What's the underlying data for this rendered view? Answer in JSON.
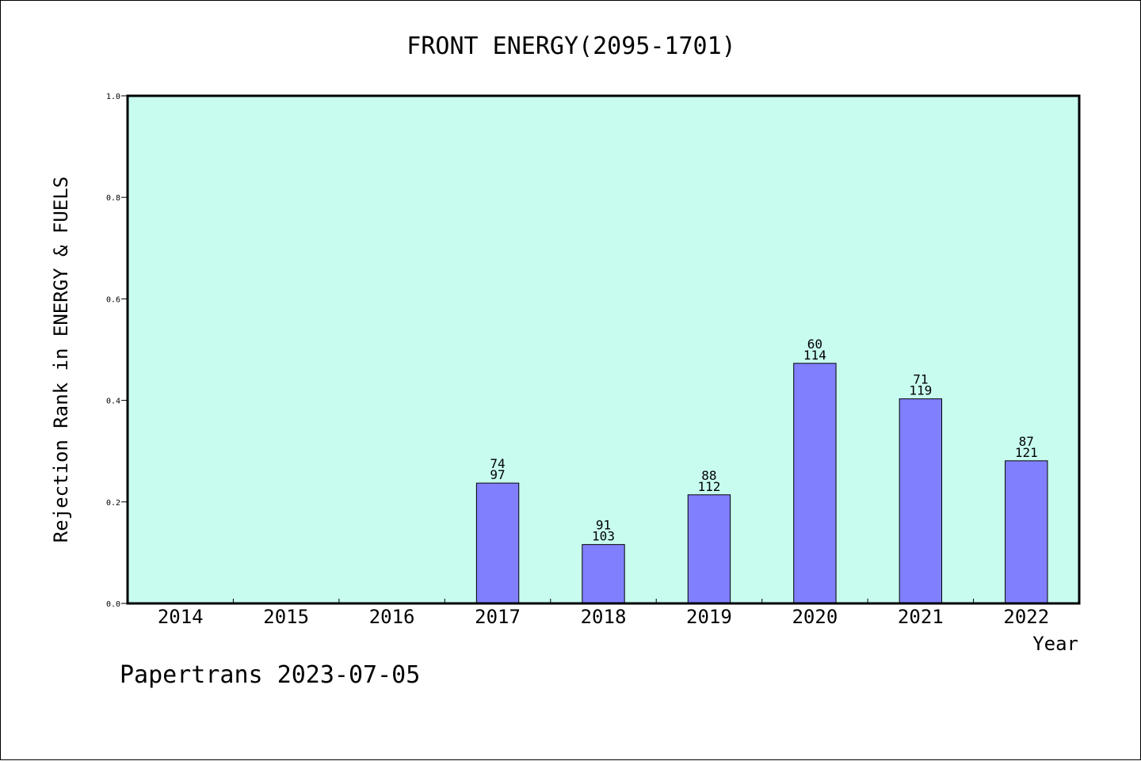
{
  "footer": {
    "source": "Papertrans",
    "date": "2023-07-05"
  },
  "colors": {
    "plot_background": "#c8fcef",
    "bar_fill": "#8080ff",
    "bar_stroke": "#000000"
  },
  "chart_data": {
    "type": "bar",
    "title": "FRONT ENERGY(2095-1701)",
    "xlabel": "Year",
    "ylabel": "Rejection Rank in ENERGY & FUELS",
    "ylim": [
      0,
      1.0
    ],
    "yticks": [
      "0.0",
      "0.2",
      "0.4",
      "0.6",
      "0.8",
      "1.0"
    ],
    "grid": false,
    "categories": [
      "2014",
      "2015",
      "2016",
      "2017",
      "2018",
      "2019",
      "2020",
      "2021",
      "2022"
    ],
    "values": [
      null,
      null,
      null,
      0.237,
      0.116,
      0.214,
      0.473,
      0.403,
      0.281
    ],
    "label_top": [
      null,
      null,
      null,
      "74",
      "91",
      "88",
      "60",
      "71",
      "87"
    ],
    "label_bottom": [
      null,
      null,
      null,
      "97",
      "103",
      "112",
      "114",
      "119",
      "121"
    ]
  }
}
